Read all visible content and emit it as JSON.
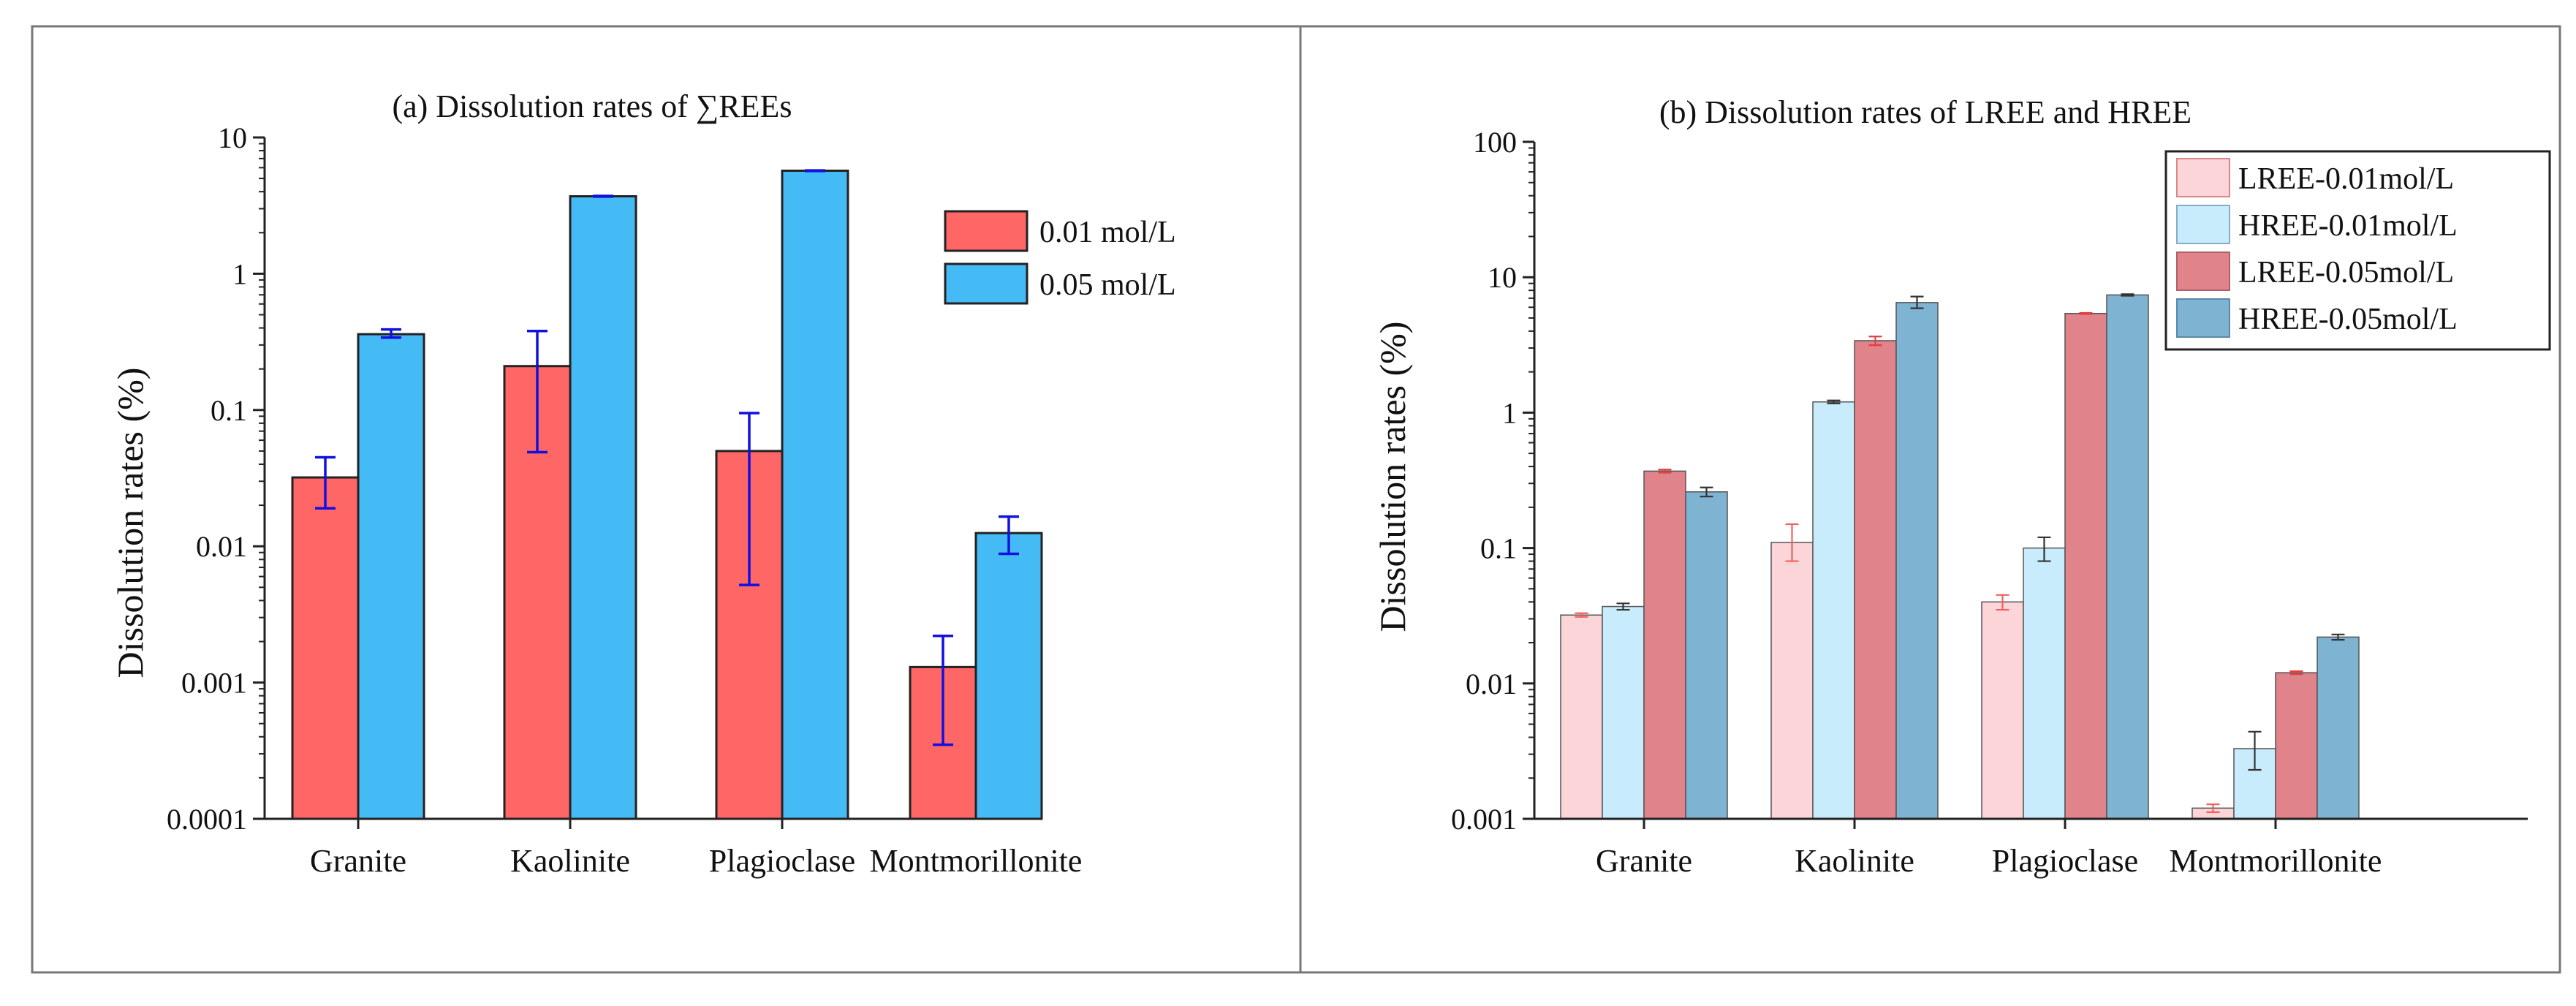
{
  "chart_data": [
    {
      "type": "bar",
      "scale": "log",
      "title": "(a) Dissolution rates of  ∑REEs",
      "xlabel": "",
      "ylabel": "Dissolution rates (%)",
      "ylim": [
        0.0001,
        10
      ],
      "yticks": [
        0.0001,
        0.001,
        0.01,
        0.1,
        1,
        10
      ],
      "ytick_labels": [
        "0.0001",
        "0.001",
        "0.01",
        "0.1",
        "1",
        "10"
      ],
      "categories": [
        "Granite",
        "Kaolinite",
        "Plagioclase",
        "Montmorillonite"
      ],
      "legend_position": "top-right",
      "error_bar_color": "#1010e0",
      "series": [
        {
          "name": "0.01 mol/L",
          "color": "#ff6666",
          "values": [
            0.032,
            0.21,
            0.05,
            0.0013
          ],
          "err_low": [
            0.019,
            0.049,
            0.0052,
            0.00035
          ],
          "err_high": [
            0.045,
            0.38,
            0.095,
            0.0022
          ]
        },
        {
          "name": "0.05 mol/L",
          "color": "#45bbf6",
          "values": [
            0.36,
            3.7,
            5.7,
            0.0125
          ],
          "err_low": [
            0.34,
            3.68,
            5.67,
            0.0088
          ],
          "err_high": [
            0.39,
            3.72,
            5.73,
            0.0165
          ]
        }
      ]
    },
    {
      "type": "bar",
      "scale": "log",
      "title": "(b) Dissolution rates of LREE and HREE",
      "xlabel": "",
      "ylabel": "Dissolution rates (%)",
      "ylim": [
        0.001,
        100
      ],
      "yticks": [
        0.001,
        0.01,
        0.1,
        1,
        10,
        100
      ],
      "ytick_labels": [
        "0.001",
        "0.01",
        "0.1",
        "1",
        "10",
        "100"
      ],
      "categories": [
        "Granite",
        "Kaolinite",
        "Plagioclase",
        "Montmorillonite"
      ],
      "legend_position": "top-right",
      "series": [
        {
          "name": "LREE-0.01mol/L",
          "color": "#fcd5d8",
          "err_color": "#f06060",
          "values": [
            0.032,
            0.11,
            0.04,
            0.0012
          ],
          "err_low": [
            0.031,
            0.08,
            0.035,
            0.00112
          ],
          "err_high": [
            0.033,
            0.15,
            0.045,
            0.00128
          ]
        },
        {
          "name": "HREE-0.01mol/L",
          "color": "#c8ecfb",
          "err_color": "#333333",
          "values": [
            0.037,
            1.2,
            0.1,
            0.0033
          ],
          "err_low": [
            0.035,
            1.17,
            0.08,
            0.0023
          ],
          "err_high": [
            0.039,
            1.23,
            0.12,
            0.0044
          ]
        },
        {
          "name": "LREE-0.05mol/L",
          "color": "#e0838b",
          "err_color": "#e04040",
          "values": [
            0.37,
            3.4,
            5.4,
            0.012
          ],
          "err_low": [
            0.36,
            3.15,
            5.35,
            0.0117
          ],
          "err_high": [
            0.38,
            3.65,
            5.45,
            0.0123
          ]
        },
        {
          "name": "HREE-0.05mol/L",
          "color": "#7fb3d2",
          "err_color": "#333333",
          "values": [
            0.26,
            6.5,
            7.4,
            0.022
          ],
          "err_low": [
            0.24,
            5.9,
            7.3,
            0.021
          ],
          "err_high": [
            0.28,
            7.2,
            7.5,
            0.023
          ]
        }
      ]
    }
  ]
}
